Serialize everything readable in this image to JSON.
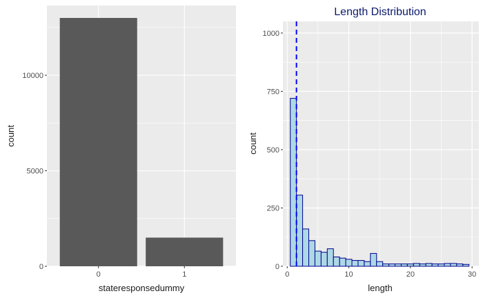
{
  "chart_data": [
    {
      "type": "bar",
      "title": "",
      "xlabel": "stateresponsedummy",
      "ylabel": "count",
      "categories": [
        "0",
        "1"
      ],
      "values": [
        13000,
        1500
      ],
      "ylim": [
        0,
        13650
      ],
      "yticks": [
        0,
        5000,
        10000
      ],
      "ytick_labels": [
        "0",
        "5000",
        "10000"
      ],
      "grid": true,
      "colors": {
        "panel": "#ebebeb",
        "grid": "#ffffff",
        "bar": "#595959"
      }
    },
    {
      "type": "bar",
      "subtype": "histogram",
      "title": "Length Distribution",
      "xlabel": "length",
      "ylabel": "count",
      "bin_width": 1,
      "bin_starts": [
        0.5,
        1.5,
        2.5,
        3.5,
        4.5,
        5.5,
        6.5,
        7.5,
        8.5,
        9.5,
        10.5,
        11.5,
        12.5,
        13.5,
        14.5,
        15.5,
        16.5,
        17.5,
        18.5,
        19.5,
        20.5,
        21.5,
        22.5,
        23.5,
        24.5,
        25.5,
        26.5,
        27.5,
        28.5
      ],
      "values": [
        720,
        305,
        160,
        110,
        65,
        60,
        75,
        40,
        35,
        30,
        25,
        25,
        20,
        55,
        20,
        10,
        10,
        10,
        10,
        10,
        12,
        10,
        12,
        10,
        10,
        12,
        12,
        10,
        8
      ],
      "xlim": [
        -0.7,
        31.1
      ],
      "ylim": [
        0,
        1050
      ],
      "xticks": [
        0,
        10,
        20,
        30
      ],
      "yticks": [
        0,
        250,
        500,
        750,
        1000
      ],
      "reference_line_x": 1.5,
      "grid": true,
      "colors": {
        "panel": "#ebebeb",
        "grid": "#ffffff",
        "bar_fill": "#add8e6",
        "bar_outline": "#00008b",
        "reference_line": "#0000ff",
        "title": "#0b1a6b"
      }
    }
  ]
}
